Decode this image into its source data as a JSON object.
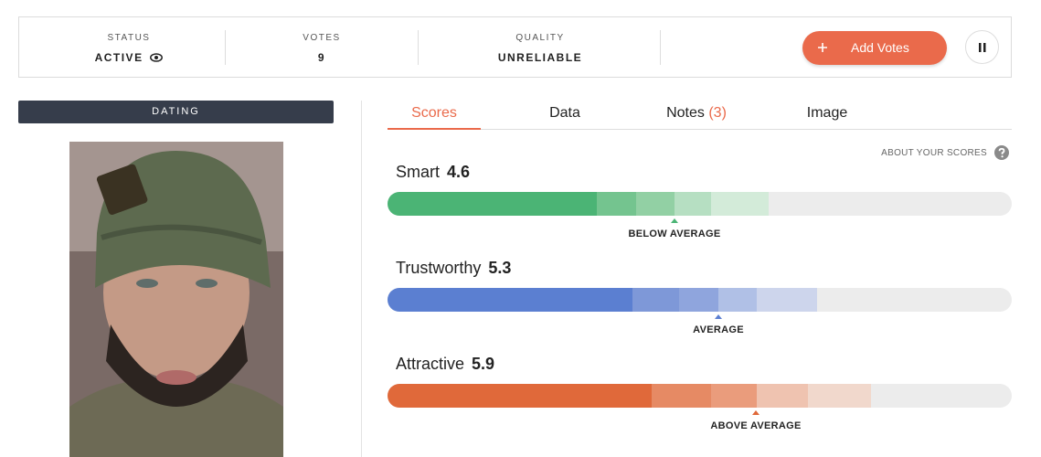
{
  "status_bar": {
    "status": {
      "label": "STATUS",
      "value": "ACTIVE"
    },
    "votes": {
      "label": "VOTES",
      "value": "9"
    },
    "quality": {
      "label": "QUALITY",
      "value": "UNRELIABLE"
    },
    "add_votes_button": "Add Votes"
  },
  "category": "DATING",
  "tabs": [
    {
      "label": "Scores"
    },
    {
      "label": "Data"
    },
    {
      "label": "Notes",
      "count": "(3)"
    },
    {
      "label": "Image"
    }
  ],
  "about_link": "ABOUT YOUR SCORES",
  "scores": [
    {
      "name": "Smart",
      "score": "4.6",
      "rating": "BELOW AVERAGE"
    },
    {
      "name": "Trustworthy",
      "score": "5.3",
      "rating": "AVERAGE"
    },
    {
      "name": "Attractive",
      "score": "5.9",
      "rating": "ABOVE AVERAGE"
    }
  ]
}
